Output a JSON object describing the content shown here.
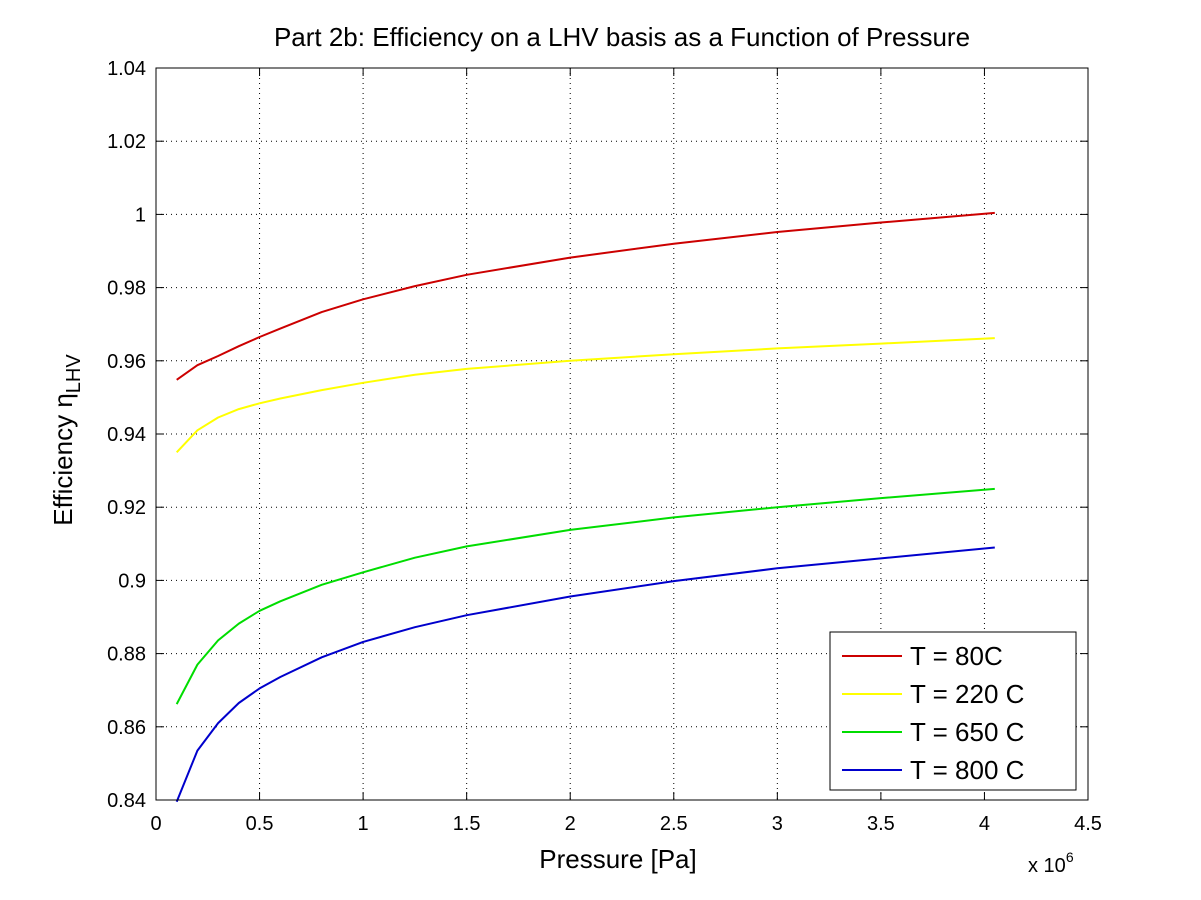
{
  "chart_data": {
    "type": "line",
    "title": "Part 2b: Efficiency on a LHV basis as a Function of Pressure",
    "xlabel": "Pressure [Pa]",
    "ylabel": {
      "main": "Efficiency η",
      "subscript": "LHV"
    },
    "x_exponent": {
      "prefix": "x 10",
      "power": "6"
    },
    "xlim": [
      0,
      4.5
    ],
    "ylim": [
      0.84,
      1.04
    ],
    "x_ticks": [
      0,
      0.5,
      1,
      1.5,
      2,
      2.5,
      3,
      3.5,
      4,
      4.5
    ],
    "x_tick_labels": [
      "0",
      "0.5",
      "1",
      "1.5",
      "2",
      "2.5",
      "3",
      "3.5",
      "4",
      "4.5"
    ],
    "y_ticks": [
      0.84,
      0.86,
      0.88,
      0.9,
      0.92,
      0.94,
      0.96,
      0.98,
      1.0,
      1.02,
      1.04
    ],
    "y_tick_labels": [
      "0.84",
      "0.86",
      "0.88",
      "0.9",
      "0.92",
      "0.94",
      "0.96",
      "0.98",
      "1",
      "1.02",
      "1.04"
    ],
    "grid": true,
    "grid_style": "dotted",
    "legend_position": "bottom-right",
    "x": [
      0.1,
      0.2,
      0.3,
      0.4,
      0.5,
      0.6,
      0.8,
      1.0,
      1.25,
      1.5,
      2.0,
      2.5,
      3.0,
      3.5,
      4.05
    ],
    "series": [
      {
        "name": "T = 80C",
        "color": "#cc0000",
        "values": [
          0.9548,
          0.9588,
          0.9613,
          0.964,
          0.9665,
          0.9688,
          0.9733,
          0.9768,
          0.9804,
          0.9835,
          0.9882,
          0.992,
          0.9952,
          0.9978,
          1.0004
        ]
      },
      {
        "name": "T = 220 C",
        "color": "#ffff00",
        "values": [
          0.935,
          0.941,
          0.9445,
          0.9468,
          0.9484,
          0.9497,
          0.952,
          0.954,
          0.9562,
          0.9578,
          0.96,
          0.9618,
          0.9634,
          0.9647,
          0.9662
        ]
      },
      {
        "name": "T = 650 C",
        "color": "#00dd00",
        "values": [
          0.8662,
          0.877,
          0.8836,
          0.8882,
          0.8917,
          0.8943,
          0.8988,
          0.9022,
          0.9062,
          0.9093,
          0.9138,
          0.9172,
          0.92,
          0.9225,
          0.925
        ]
      },
      {
        "name": "T = 800 C",
        "color": "#0000cc",
        "values": [
          0.8395,
          0.8535,
          0.861,
          0.8665,
          0.8705,
          0.8736,
          0.879,
          0.8832,
          0.8872,
          0.8905,
          0.8956,
          0.8998,
          0.9033,
          0.906,
          0.909
        ]
      }
    ]
  }
}
